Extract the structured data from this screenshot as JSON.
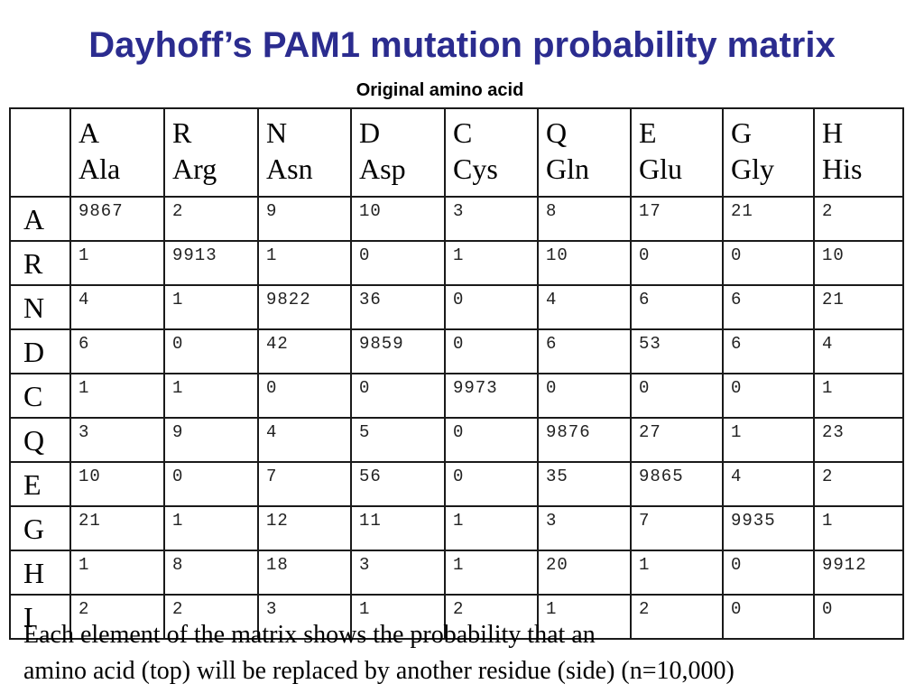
{
  "title": "Dayhoff’s PAM1 mutation probability matrix",
  "subtitle": "Original amino acid",
  "columns": [
    {
      "code": "A",
      "name": "Ala"
    },
    {
      "code": "R",
      "name": "Arg"
    },
    {
      "code": "N",
      "name": "Asn"
    },
    {
      "code": "D",
      "name": "Asp"
    },
    {
      "code": "C",
      "name": "Cys"
    },
    {
      "code": "Q",
      "name": "Gln"
    },
    {
      "code": "E",
      "name": "Glu"
    },
    {
      "code": "G",
      "name": "Gly"
    },
    {
      "code": "H",
      "name": "His"
    }
  ],
  "rows": [
    {
      "label": "A",
      "cells": [
        "9867",
        "2",
        "9",
        "10",
        "3",
        "8",
        "17",
        "21",
        "2"
      ]
    },
    {
      "label": "R",
      "cells": [
        "1",
        "9913",
        "1",
        "0",
        "1",
        "10",
        "0",
        "0",
        "10"
      ]
    },
    {
      "label": "N",
      "cells": [
        "4",
        "1",
        "9822",
        "36",
        "0",
        "4",
        "6",
        "6",
        "21"
      ]
    },
    {
      "label": "D",
      "cells": [
        "6",
        "0",
        "42",
        "9859",
        "0",
        "6",
        "53",
        "6",
        "4"
      ]
    },
    {
      "label": "C",
      "cells": [
        "1",
        "1",
        "0",
        "0",
        "9973",
        "0",
        "0",
        "0",
        "1"
      ]
    },
    {
      "label": "Q",
      "cells": [
        "3",
        "9",
        "4",
        "5",
        "0",
        "9876",
        "27",
        "1",
        "23"
      ]
    },
    {
      "label": "E",
      "cells": [
        "10",
        "0",
        "7",
        "56",
        "0",
        "35",
        "9865",
        "4",
        "2"
      ]
    },
    {
      "label": "G",
      "cells": [
        "21",
        "1",
        "12",
        "11",
        "1",
        "3",
        "7",
        "9935",
        "1"
      ]
    },
    {
      "label": "H",
      "cells": [
        "1",
        "8",
        "18",
        "3",
        "1",
        "20",
        "1",
        "0",
        "9912"
      ]
    },
    {
      "label": "I",
      "cells": [
        "2",
        "2",
        "3",
        "1",
        "2",
        "1",
        "2",
        "0",
        "0"
      ]
    }
  ],
  "caption": {
    "line1": "Each element of the matrix shows the probability that an",
    "line2": "amino acid (top) will be replaced by another residue (side) (n=10,000)"
  },
  "colors": {
    "title": "#2b2c8f",
    "grid": "#1a1a1a"
  }
}
